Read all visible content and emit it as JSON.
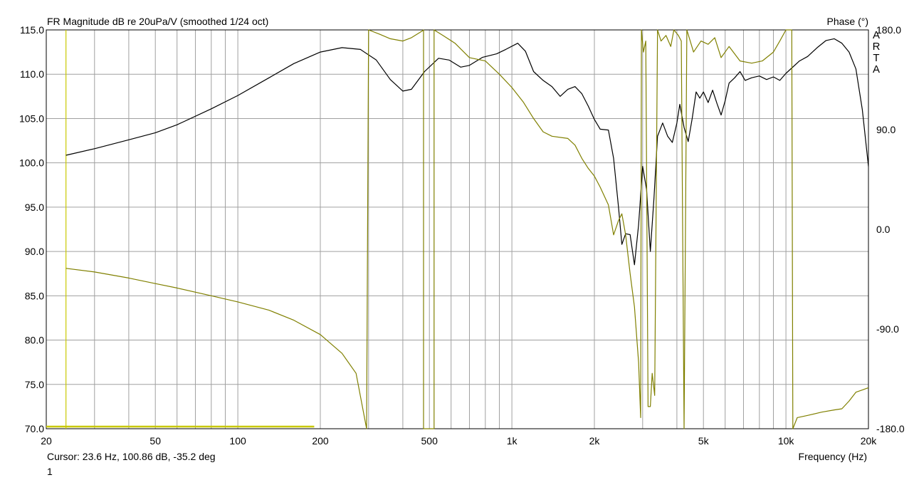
{
  "header": {
    "title": "FR Magnitude dB re 20uPa/V (smoothed 1/24 oct)",
    "right_title": "Phase (°)",
    "brand_letters": [
      "A",
      "R",
      "T",
      "A"
    ]
  },
  "footer": {
    "cursor": "Cursor: 23.6 Hz, 100.86 dB, -35.2 deg",
    "page_number": "1"
  },
  "colors": {
    "magnitude": "#000000",
    "phase": "#808000",
    "cursor": "#c8c800",
    "grid": "#a0a0a0",
    "frame": "#000000"
  },
  "chart_data": {
    "type": "line",
    "title": "FR Magnitude dB re 20uPa/V (smoothed 1/24 oct)",
    "xlabel": "Frequency (Hz)",
    "ylabel": "",
    "y2label": "Phase (°)",
    "xscale": "log",
    "xlim": [
      20,
      20000
    ],
    "ylim": [
      70,
      115
    ],
    "y2lim": [
      -180,
      180
    ],
    "grid": true,
    "xticks": [
      {
        "v": 20,
        "t": "20"
      },
      {
        "v": 50,
        "t": "50"
      },
      {
        "v": 100,
        "t": "100"
      },
      {
        "v": 200,
        "t": "200"
      },
      {
        "v": 500,
        "t": "500"
      },
      {
        "v": 1000,
        "t": "1k"
      },
      {
        "v": 2000,
        "t": "2k"
      },
      {
        "v": 5000,
        "t": "5k"
      },
      {
        "v": 10000,
        "t": "10k"
      },
      {
        "v": 20000,
        "t": "20k"
      }
    ],
    "yticks": [
      {
        "v": 115,
        "t": "115.0"
      },
      {
        "v": 110,
        "t": "110.0"
      },
      {
        "v": 105,
        "t": "105.0"
      },
      {
        "v": 100,
        "t": "100.0"
      },
      {
        "v": 95,
        "t": "95.0"
      },
      {
        "v": 90,
        "t": "90.0"
      },
      {
        "v": 85,
        "t": "85.0"
      },
      {
        "v": 80,
        "t": "80.0"
      },
      {
        "v": 75,
        "t": "75.0"
      },
      {
        "v": 70,
        "t": "70.0"
      }
    ],
    "y2ticks": [
      {
        "v": 180,
        "t": "180.0"
      },
      {
        "v": 90,
        "t": "90.0"
      },
      {
        "v": 0,
        "t": "0.0"
      },
      {
        "v": -90,
        "t": "-90.0"
      },
      {
        "v": -180,
        "t": "-180.0"
      }
    ],
    "cursor": {
      "x": 23.6,
      "marker_until": 190
    },
    "series": [
      {
        "axis": "left",
        "color": "#000000",
        "points": [
          [
            23.6,
            100.86
          ],
          [
            30,
            101.6
          ],
          [
            40,
            102.6
          ],
          [
            50,
            103.4
          ],
          [
            60,
            104.3
          ],
          [
            80,
            106.1
          ],
          [
            100,
            107.6
          ],
          [
            130,
            109.6
          ],
          [
            160,
            111.2
          ],
          [
            200,
            112.5
          ],
          [
            240,
            113.0
          ],
          [
            280,
            112.8
          ],
          [
            320,
            111.6
          ],
          [
            360,
            109.4
          ],
          [
            400,
            108.1
          ],
          [
            430,
            108.3
          ],
          [
            480,
            110.3
          ],
          [
            540,
            111.8
          ],
          [
            590,
            111.6
          ],
          [
            650,
            110.8
          ],
          [
            700,
            111.0
          ],
          [
            780,
            111.9
          ],
          [
            880,
            112.3
          ],
          [
            950,
            112.8
          ],
          [
            1050,
            113.5
          ],
          [
            1120,
            112.6
          ],
          [
            1200,
            110.3
          ],
          [
            1300,
            109.3
          ],
          [
            1400,
            108.6
          ],
          [
            1500,
            107.5
          ],
          [
            1600,
            108.3
          ],
          [
            1700,
            108.6
          ],
          [
            1800,
            107.8
          ],
          [
            1900,
            106.4
          ],
          [
            2000,
            104.9
          ],
          [
            2100,
            103.8
          ],
          [
            2250,
            103.7
          ],
          [
            2350,
            100.5
          ],
          [
            2450,
            95.0
          ],
          [
            2520,
            90.8
          ],
          [
            2600,
            92.0
          ],
          [
            2700,
            91.9
          ],
          [
            2800,
            88.5
          ],
          [
            2900,
            93.0
          ],
          [
            3000,
            99.6
          ],
          [
            3100,
            97.0
          ],
          [
            3200,
            90.0
          ],
          [
            3300,
            96.0
          ],
          [
            3400,
            103.0
          ],
          [
            3550,
            104.5
          ],
          [
            3700,
            103.0
          ],
          [
            3850,
            102.3
          ],
          [
            4000,
            104.5
          ],
          [
            4100,
            106.6
          ],
          [
            4250,
            104.0
          ],
          [
            4400,
            102.4
          ],
          [
            4550,
            105.0
          ],
          [
            4700,
            108.0
          ],
          [
            4850,
            107.3
          ],
          [
            5000,
            108.0
          ],
          [
            5200,
            106.8
          ],
          [
            5400,
            108.2
          ],
          [
            5600,
            106.7
          ],
          [
            5800,
            105.4
          ],
          [
            6000,
            107.0
          ],
          [
            6200,
            109.0
          ],
          [
            6500,
            109.6
          ],
          [
            6800,
            110.3
          ],
          [
            7100,
            109.3
          ],
          [
            7500,
            109.6
          ],
          [
            8000,
            109.8
          ],
          [
            8500,
            109.4
          ],
          [
            9000,
            109.7
          ],
          [
            9500,
            109.3
          ],
          [
            10000,
            110.1
          ],
          [
            10500,
            110.7
          ],
          [
            11200,
            111.5
          ],
          [
            12000,
            112.0
          ],
          [
            13000,
            113.0
          ],
          [
            14000,
            113.8
          ],
          [
            15000,
            114.0
          ],
          [
            16000,
            113.5
          ],
          [
            17000,
            112.5
          ],
          [
            18000,
            110.6
          ],
          [
            19000,
            106.0
          ],
          [
            20000,
            99.6
          ]
        ]
      },
      {
        "axis": "right",
        "color": "#808000",
        "wraps": true,
        "points": [
          [
            23.6,
            -35.2
          ],
          [
            30,
            -38.5
          ],
          [
            40,
            -44
          ],
          [
            50,
            -49
          ],
          [
            60,
            -53
          ],
          [
            80,
            -60
          ],
          [
            100,
            -65.5
          ],
          [
            130,
            -73
          ],
          [
            160,
            -82
          ],
          [
            200,
            -95
          ],
          [
            240,
            -112
          ],
          [
            270,
            -130
          ],
          [
            295,
            -180
          ],
          [
            300,
            180
          ],
          [
            330,
            176
          ],
          [
            360,
            172
          ],
          [
            400,
            170
          ],
          [
            430,
            173
          ],
          [
            470,
            179
          ],
          [
            476,
            180
          ],
          [
            476,
            -180
          ],
          [
            520,
            -180
          ],
          [
            520,
            180
          ],
          [
            560,
            175
          ],
          [
            620,
            168
          ],
          [
            700,
            155
          ],
          [
            800,
            152
          ],
          [
            900,
            140
          ],
          [
            1000,
            128
          ],
          [
            1100,
            115
          ],
          [
            1200,
            100
          ],
          [
            1300,
            88
          ],
          [
            1400,
            84
          ],
          [
            1600,
            82
          ],
          [
            1700,
            76
          ],
          [
            1800,
            64
          ],
          [
            1900,
            55
          ],
          [
            2000,
            48
          ],
          [
            2100,
            38
          ],
          [
            2250,
            22
          ],
          [
            2350,
            -5
          ],
          [
            2450,
            8
          ],
          [
            2520,
            14
          ],
          [
            2600,
            -5
          ],
          [
            2700,
            -40
          ],
          [
            2800,
            -70
          ],
          [
            2900,
            -120
          ],
          [
            2950,
            -170
          ],
          [
            2970,
            180
          ],
          [
            3020,
            160
          ],
          [
            3080,
            170
          ],
          [
            3140,
            -160
          ],
          [
            3200,
            -160
          ],
          [
            3250,
            -130
          ],
          [
            3320,
            -150
          ],
          [
            3400,
            180
          ],
          [
            3500,
            170
          ],
          [
            3650,
            175
          ],
          [
            3800,
            165
          ],
          [
            3900,
            180
          ],
          [
            4050,
            175
          ],
          [
            4150,
            170
          ],
          [
            4250,
            -180
          ],
          [
            4350,
            180
          ],
          [
            4600,
            160
          ],
          [
            4900,
            170
          ],
          [
            5200,
            167
          ],
          [
            5500,
            173
          ],
          [
            5800,
            155
          ],
          [
            6200,
            165
          ],
          [
            6800,
            152
          ],
          [
            7500,
            150
          ],
          [
            8200,
            152
          ],
          [
            9000,
            160
          ],
          [
            9500,
            170
          ],
          [
            10000,
            180
          ],
          [
            10500,
            180
          ],
          [
            10600,
            -180
          ],
          [
            11000,
            -170
          ],
          [
            12000,
            -168
          ],
          [
            13500,
            -165
          ],
          [
            15000,
            -163
          ],
          [
            16000,
            -162
          ],
          [
            17000,
            -155
          ],
          [
            18000,
            -147
          ],
          [
            19000,
            -145
          ],
          [
            20000,
            -143
          ]
        ]
      }
    ]
  }
}
